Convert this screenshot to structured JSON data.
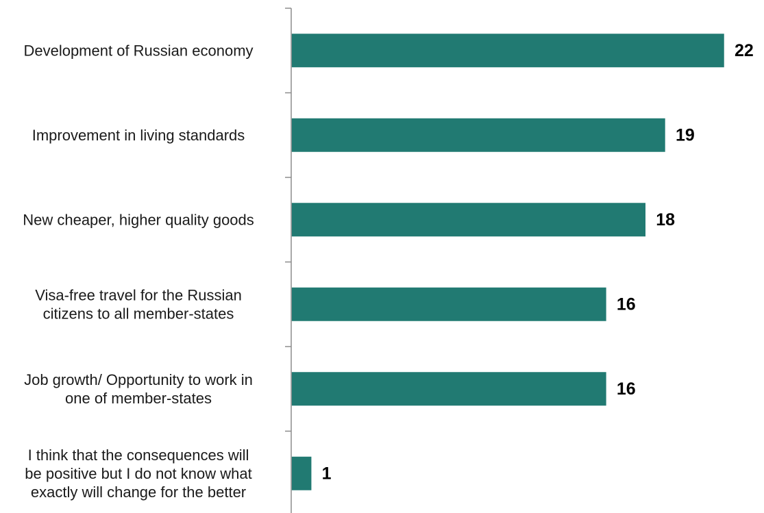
{
  "chart_data": {
    "type": "bar",
    "orientation": "horizontal",
    "categories": [
      [
        "Development of Russian economy"
      ],
      [
        "Improvement in living standards"
      ],
      [
        "New cheaper, higher quality goods"
      ],
      [
        "Visa-free travel for the Russian",
        "citizens to all member-states"
      ],
      [
        "Job growth/ Opportunity to work in",
        "one of member-states"
      ],
      [
        "I think that the consequences will",
        "be positive but I do not know what",
        "exactly will change for the better"
      ]
    ],
    "values": [
      22,
      19,
      18,
      16,
      16,
      1
    ],
    "data_labels": [
      "22",
      "19",
      "18",
      "16",
      "16",
      "1"
    ],
    "title": "",
    "xlabel": "",
    "ylabel": "",
    "xlim": [
      0,
      22
    ],
    "grid": false,
    "legend": "none",
    "colors": {
      "bar": "#217a72",
      "axis": "#8c8c8c",
      "label_text": "#1a1a1a",
      "value_text": "#000000"
    }
  }
}
